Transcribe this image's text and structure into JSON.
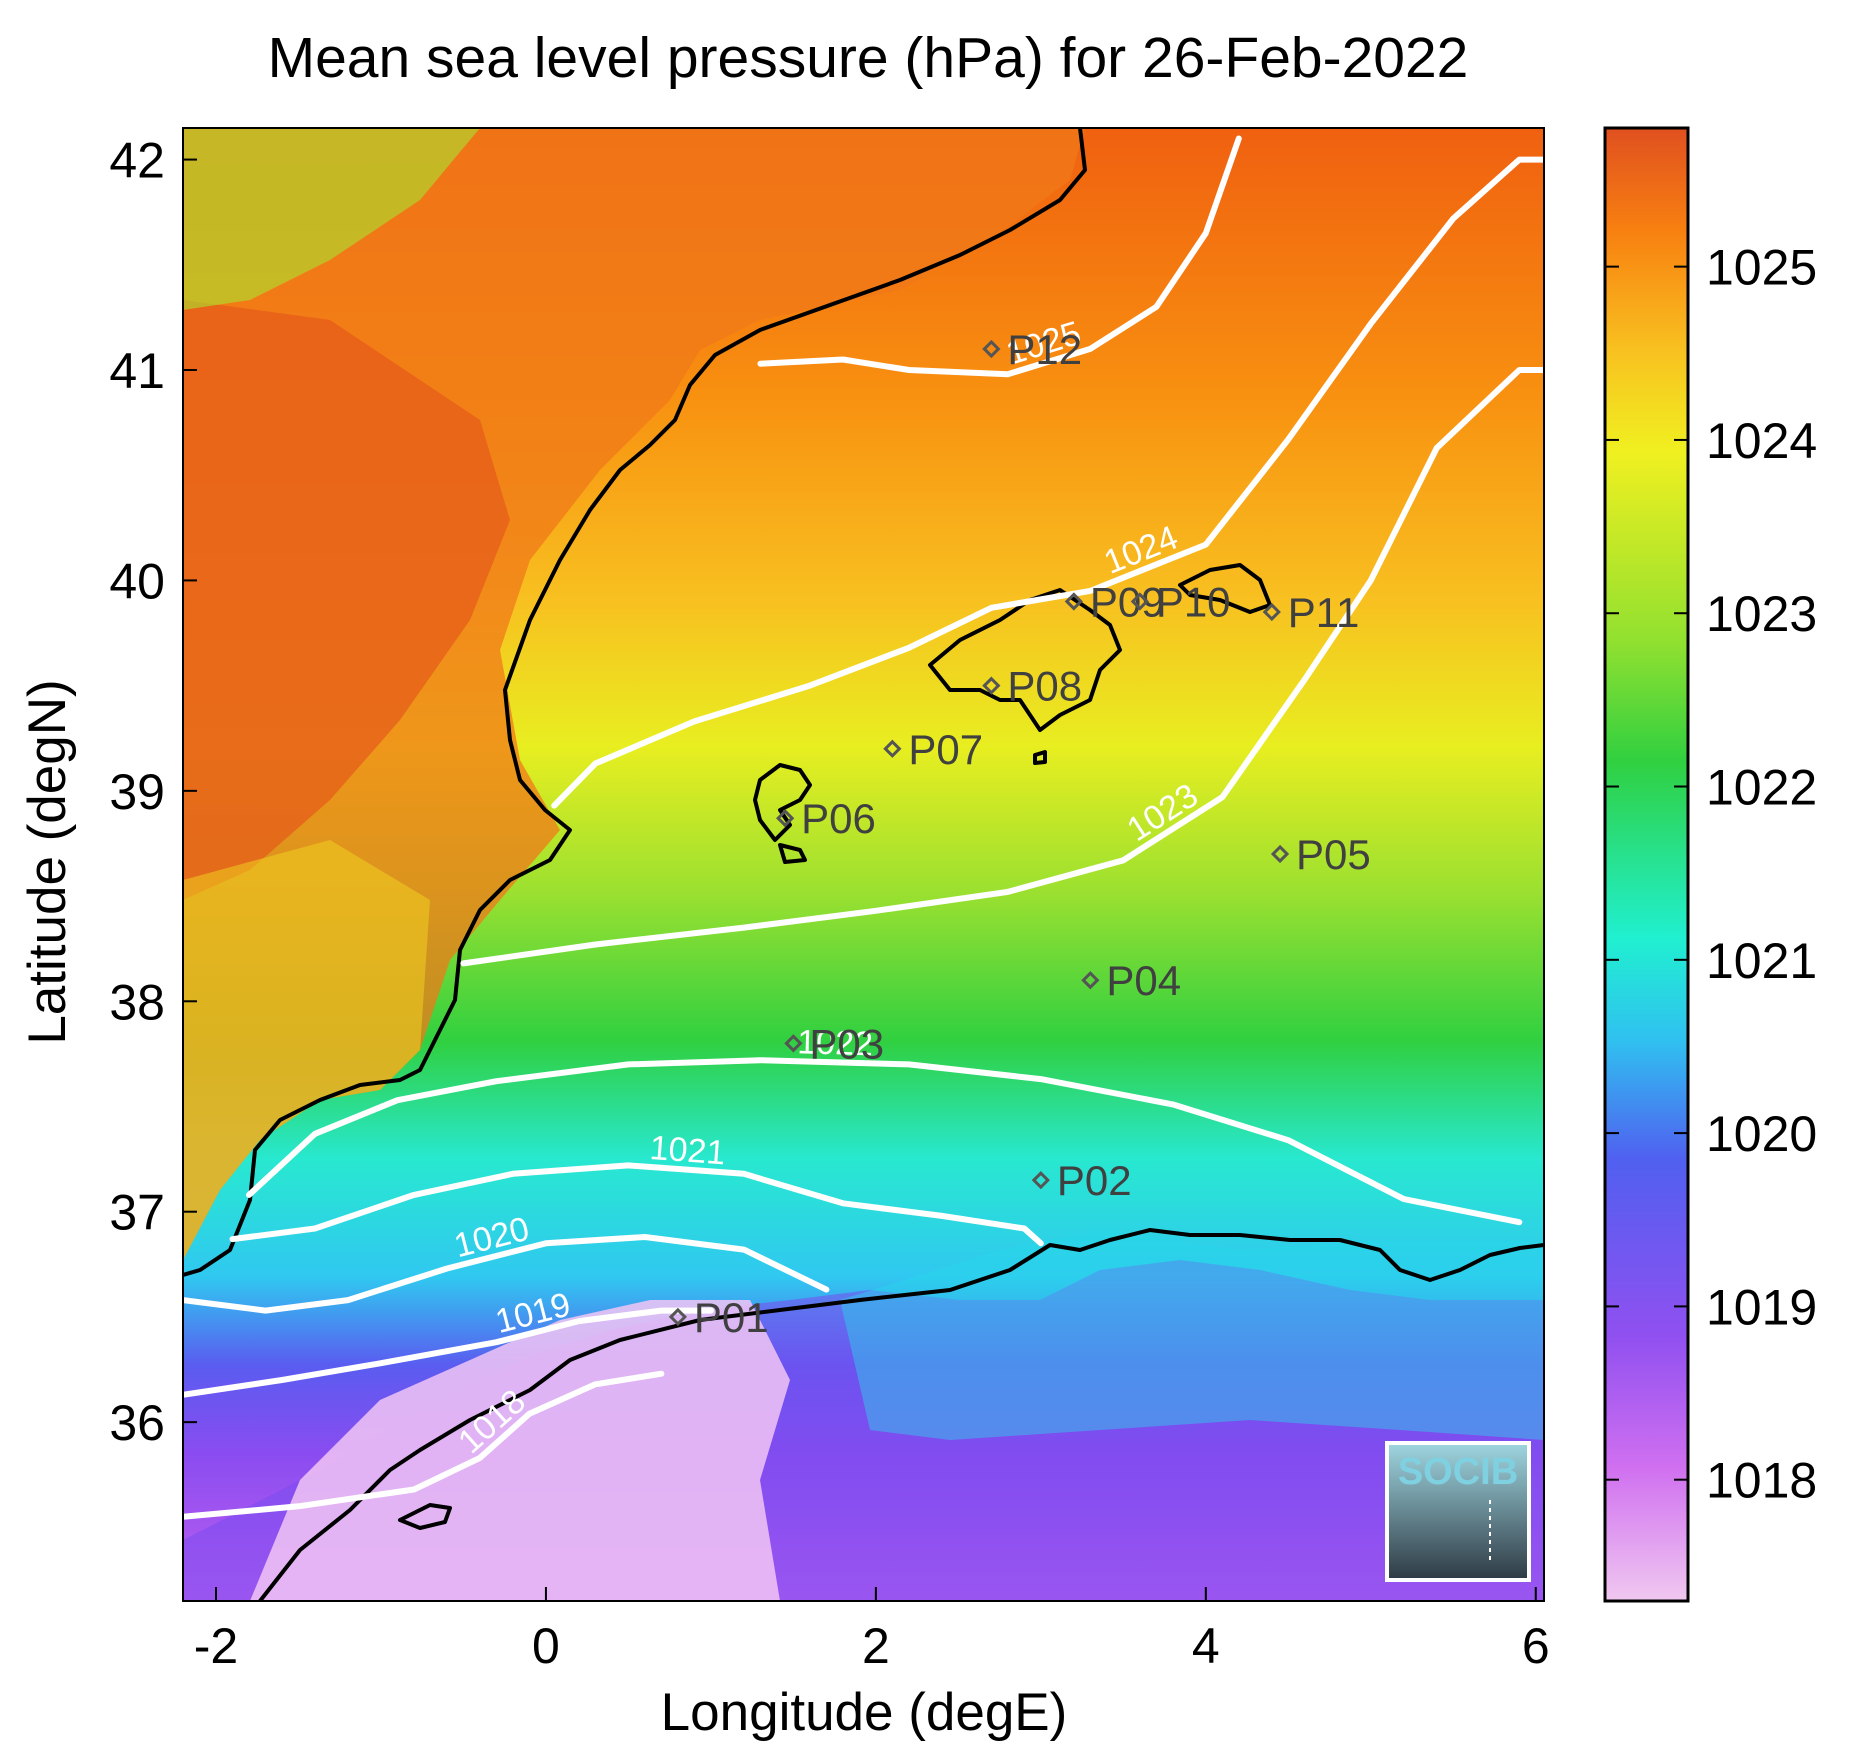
{
  "title": "Mean sea level pressure (hPa) for 26-Feb-2022",
  "xlabel": "Longitude (degE)",
  "ylabel": "Latitude (degN)",
  "logo_text": "SOCIB",
  "colors": {
    "land_coast": "#000000",
    "contour": "#ffffff",
    "marker": "#555555",
    "colormap": [
      "#f0c8f0",
      "#d070f0",
      "#9050f0",
      "#5060f0",
      "#30c0f0",
      "#20f0d0",
      "#30d040",
      "#90e030",
      "#f0f020",
      "#f8c020",
      "#f88010",
      "#e05020"
    ]
  },
  "chart_data": {
    "type": "heatmap",
    "variable": "Mean sea level pressure",
    "units": "hPa",
    "date": "26-Feb-2022",
    "xlim": [
      -2.2,
      6.05
    ],
    "ylim": [
      35.15,
      42.15
    ],
    "xticks": [
      -2,
      0,
      2,
      4,
      6
    ],
    "xtick_labels": [
      "-2",
      "0",
      "2",
      "4",
      "6"
    ],
    "yticks": [
      36,
      37,
      38,
      39,
      40,
      41,
      42
    ],
    "ytick_labels": [
      "36",
      "37",
      "38",
      "39",
      "40",
      "41",
      "42"
    ],
    "colorbar": {
      "range": [
        1017.3,
        1025.8
      ],
      "ticks": [
        1018,
        1019,
        1020,
        1021,
        1022,
        1023,
        1024,
        1025
      ],
      "tick_labels": [
        "1018",
        "1019",
        "1020",
        "1021",
        "1022",
        "1023",
        "1024",
        "1025"
      ]
    },
    "contours": [
      {
        "level": 1018,
        "label": "1018",
        "points": [
          [
            -2.2,
            35.55
          ],
          [
            -1.5,
            35.6
          ],
          [
            -0.8,
            35.68
          ],
          [
            -0.4,
            35.83
          ],
          [
            -0.1,
            36.04
          ],
          [
            0.3,
            36.18
          ],
          [
            0.7,
            36.23
          ]
        ]
      },
      {
        "level": 1019,
        "label": "1019",
        "points": [
          [
            -2.2,
            36.13
          ],
          [
            -1.6,
            36.2
          ],
          [
            -1.0,
            36.28
          ],
          [
            -0.3,
            36.38
          ],
          [
            0.2,
            36.48
          ],
          [
            0.7,
            36.53
          ],
          [
            1.0,
            36.53
          ]
        ]
      },
      {
        "level": 1020,
        "label": "1020",
        "points": [
          [
            -2.2,
            36.58
          ],
          [
            -1.7,
            36.53
          ],
          [
            -1.2,
            36.58
          ],
          [
            -0.6,
            36.73
          ],
          [
            0.0,
            36.85
          ],
          [
            0.6,
            36.88
          ],
          [
            1.2,
            36.82
          ],
          [
            1.7,
            36.63
          ]
        ]
      },
      {
        "level": 1021,
        "label": "1021",
        "points": [
          [
            -1.9,
            36.87
          ],
          [
            -1.4,
            36.92
          ],
          [
            -0.8,
            37.08
          ],
          [
            -0.2,
            37.18
          ],
          [
            0.5,
            37.22
          ],
          [
            1.2,
            37.18
          ],
          [
            1.8,
            37.04
          ],
          [
            2.4,
            36.98
          ],
          [
            2.9,
            36.92
          ],
          [
            3.0,
            36.85
          ]
        ]
      },
      {
        "level": 1022,
        "label": "1022",
        "points": [
          [
            -1.8,
            37.08
          ],
          [
            -1.4,
            37.37
          ],
          [
            -0.9,
            37.53
          ],
          [
            -0.3,
            37.62
          ],
          [
            0.5,
            37.7
          ],
          [
            1.3,
            37.72
          ],
          [
            2.2,
            37.7
          ],
          [
            3.0,
            37.63
          ],
          [
            3.8,
            37.51
          ],
          [
            4.5,
            37.34
          ],
          [
            5.2,
            37.06
          ],
          [
            5.9,
            36.95
          ]
        ]
      },
      {
        "level": 1023,
        "label": "1023",
        "points": [
          [
            -0.5,
            38.18
          ],
          [
            0.3,
            38.27
          ],
          [
            1.2,
            38.35
          ],
          [
            2.0,
            38.43
          ],
          [
            2.8,
            38.52
          ],
          [
            3.5,
            38.67
          ],
          [
            4.1,
            38.97
          ],
          [
            4.6,
            39.53
          ],
          [
            5.0,
            40.0
          ],
          [
            5.4,
            40.63
          ],
          [
            5.9,
            41.0
          ],
          [
            6.05,
            41.0
          ]
        ]
      },
      {
        "level": 1024,
        "label": "1024",
        "points": [
          [
            0.05,
            38.93
          ],
          [
            0.3,
            39.13
          ],
          [
            0.9,
            39.33
          ],
          [
            1.6,
            39.5
          ],
          [
            2.2,
            39.68
          ],
          [
            2.7,
            39.87
          ],
          [
            3.3,
            39.95
          ],
          [
            4.0,
            40.17
          ],
          [
            4.5,
            40.67
          ],
          [
            5.0,
            41.22
          ],
          [
            5.5,
            41.72
          ],
          [
            5.9,
            42.0
          ],
          [
            6.05,
            42.0
          ]
        ]
      },
      {
        "level": 1025,
        "label": "1025",
        "points": [
          [
            1.3,
            41.03
          ],
          [
            1.8,
            41.05
          ],
          [
            2.2,
            41.0
          ],
          [
            2.8,
            40.98
          ],
          [
            3.3,
            41.1
          ],
          [
            3.7,
            41.3
          ],
          [
            4.0,
            41.65
          ],
          [
            4.2,
            42.1
          ]
        ]
      }
    ],
    "stations": [
      {
        "id": "P01",
        "lon": 0.8,
        "lat": 36.5
      },
      {
        "id": "P02",
        "lon": 3.0,
        "lat": 37.15
      },
      {
        "id": "P03",
        "lon": 1.5,
        "lat": 37.8
      },
      {
        "id": "P04",
        "lon": 3.3,
        "lat": 38.1
      },
      {
        "id": "P05",
        "lon": 4.45,
        "lat": 38.7
      },
      {
        "id": "P06",
        "lon": 1.45,
        "lat": 38.87
      },
      {
        "id": "P07",
        "lon": 2.1,
        "lat": 39.2
      },
      {
        "id": "P08",
        "lon": 2.7,
        "lat": 39.5
      },
      {
        "id": "P09",
        "lon": 3.2,
        "lat": 39.9
      },
      {
        "id": "P10",
        "lon": 3.6,
        "lat": 39.9
      },
      {
        "id": "P11",
        "lon": 4.4,
        "lat": 39.85
      },
      {
        "id": "P12",
        "lon": 2.7,
        "lat": 41.1
      }
    ]
  }
}
